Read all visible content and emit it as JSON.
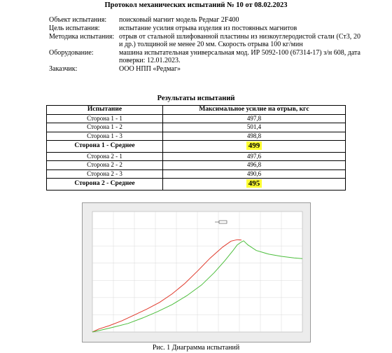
{
  "document": {
    "title": "Протокол механических испытаний № 10 от 08.02.2023"
  },
  "info": [
    {
      "label": "Объект испытания:",
      "value": "поисковый магнит модель Редмаг 2F400"
    },
    {
      "label": "Цель испытания:",
      "value": "испытание усилия отрыва изделия из постоянных магнитов"
    },
    {
      "label": "Методика испытания:",
      "value": "отрыв от стальной шлифованной пластины из низкоуглеродистой стали (Ст3, 20 и др.) толщиной не менее 20 мм. Скорость отрыва 100 кг/мин"
    },
    {
      "label": "Оборудование:",
      "value": "машина испытательная универсальная мод. ИР 5092-100 (67314-17) з/н 608, дата поверки: 12.01.2023."
    },
    {
      "label": "Заказчик:",
      "value": "ООО НПП «Редмаг»"
    }
  ],
  "results": {
    "title": "Результаты испытаний",
    "headers": [
      "Испытание",
      "Максимальное усилие на отрыв, кгс"
    ],
    "rows": [
      {
        "name": "Сторона 1 - 1",
        "value": "497,8"
      },
      {
        "name": "Сторона 1 - 2",
        "value": "501,4"
      },
      {
        "name": "Сторона 1 - 3",
        "value": "498,8"
      },
      {
        "name": "Сторона 1 - Среднее",
        "value": "499",
        "average": true
      },
      {
        "name": "Сторона 2 - 1",
        "value": "497,6"
      },
      {
        "name": "Сторона 2 - 2",
        "value": "496,8"
      },
      {
        "name": "Сторона 2 - 3",
        "value": "490,6"
      },
      {
        "name": "Сторона 2 - Среднее",
        "value": "495",
        "average": true
      }
    ],
    "highlight_color": "#ffff33"
  },
  "chart_data": {
    "type": "line",
    "grid": true,
    "series": [
      {
        "color": "#e0392b",
        "x": [
          0,
          3,
          8,
          14,
          20,
          26,
          32,
          38,
          44,
          50,
          56,
          62,
          66,
          69,
          71
        ],
        "y": [
          0,
          16,
          34,
          60,
          92,
          124,
          160,
          206,
          262,
          328,
          398,
          458,
          490,
          498,
          496
        ]
      },
      {
        "color": "#4cbe3c",
        "x": [
          0,
          4,
          10,
          17,
          24,
          31,
          38,
          45,
          52,
          58,
          63,
          67,
          69,
          71,
          72,
          74,
          78,
          84,
          90,
          96,
          100
        ],
        "y": [
          0,
          10,
          26,
          46,
          76,
          110,
          148,
          196,
          254,
          320,
          384,
          440,
          470,
          486,
          492,
          470,
          440,
          420,
          408,
          400,
          396
        ]
      }
    ],
    "xlim": [
      0,
      100
    ],
    "ylim": [
      0,
      650
    ]
  },
  "caption": "Рис. 1 Диаграмма испытаний"
}
